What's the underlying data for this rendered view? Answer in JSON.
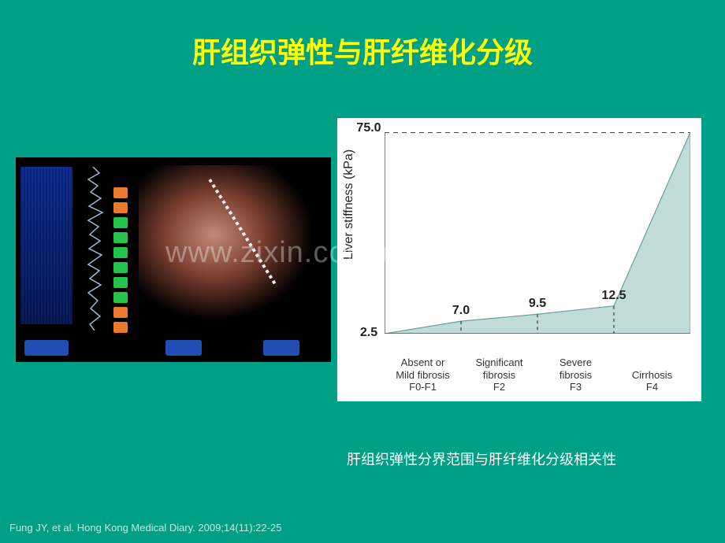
{
  "title": "肝组织弹性与肝纤维化分级",
  "caption": "肝组织弹性分界范围与肝纤维化分级相关性",
  "citation": "Fung JY, et al. Hong Kong Medical Diary. 2009;14(11):22-25",
  "watermark": "www.zixin.com.cn",
  "colors": {
    "slide_bg": "#00a086",
    "title": "#ffff00",
    "chart_bg": "#ffffff",
    "area_fill": "#c1dcd8",
    "area_stroke": "#6aa09a",
    "axis": "#555555",
    "dash": "#444444"
  },
  "chart": {
    "type": "area",
    "ylabel": "Liver stiffness (kPa)",
    "ylabel_fontsize": 16,
    "ylim": [
      2.5,
      75.0
    ],
    "y_ticks_shown": [
      2.5,
      75.0
    ],
    "plot_ratio_wh": [
      388,
      256
    ],
    "value_label_fontsize": 16,
    "value_label_fontweight": "bold",
    "category_fontsize": 13,
    "categories": [
      {
        "lines": [
          "Absent or",
          "Mild fibrosis",
          "F0-F1"
        ],
        "boundary_kpa": 7.0
      },
      {
        "lines": [
          "Significant",
          "fibrosis",
          "F2"
        ],
        "boundary_kpa": 9.5
      },
      {
        "lines": [
          "Severe",
          "fibrosis",
          "F3"
        ],
        "boundary_kpa": 12.5
      },
      {
        "lines": [
          "Cirrhosis",
          "F4"
        ],
        "boundary_kpa": 75.0
      }
    ],
    "baseline_kpa": 2.5
  },
  "ultrasound_mock": {
    "bg": "#000000",
    "trace_color": "#9bb8d6",
    "bars": [
      "o",
      "o",
      "g",
      "g",
      "g",
      "g",
      "g",
      "g",
      "o",
      "o"
    ],
    "probe_angle_deg": -32
  }
}
